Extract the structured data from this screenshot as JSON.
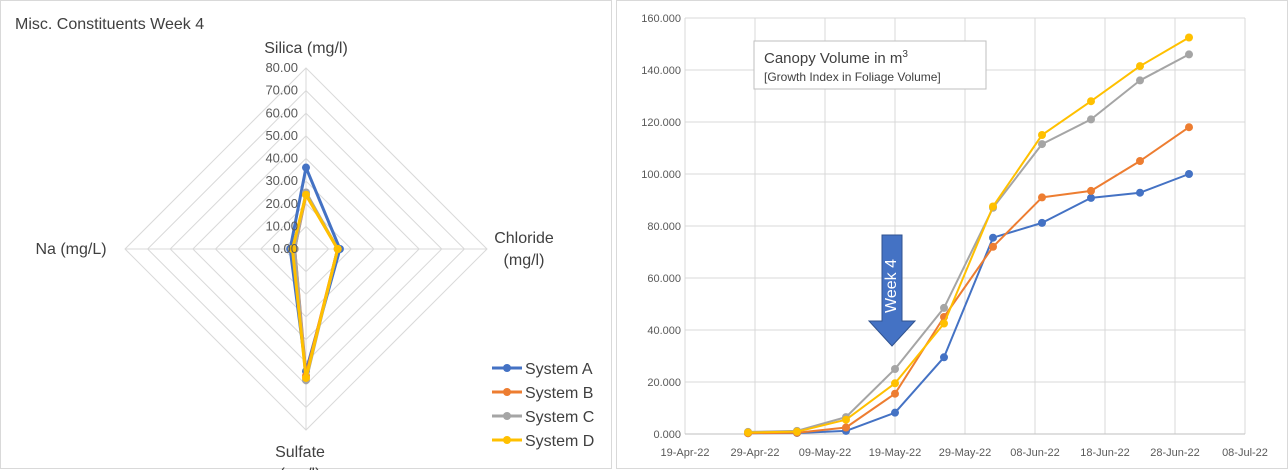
{
  "chart_data": [
    {
      "type": "radar",
      "title": "Misc. Constituents Week 4",
      "axes": [
        "Silica (mg/l)",
        "Chloride (mg/l)",
        "Sulfate (mg/l)",
        "Na (mg/L)"
      ],
      "axis_label_lines": [
        [
          "Silica (mg/l)"
        ],
        [
          "Chloride",
          "(mg/l)"
        ],
        [
          "Sulfate",
          "(mg/l)"
        ],
        [
          "Na (mg/L)"
        ]
      ],
      "rmax": 80,
      "ticks": [
        "80.00",
        "70.00",
        "60.00",
        "50.00",
        "40.00",
        "30.00",
        "20.00",
        "10.00",
        "0.00"
      ],
      "tick_values": [
        80,
        70,
        60,
        50,
        40,
        30,
        20,
        10,
        0
      ],
      "series": [
        {
          "name": "System A",
          "color": "#4472C4",
          "values": [
            36,
            15,
            54,
            7
          ]
        },
        {
          "name": "System B",
          "color": "#ED7D31",
          "values": [
            24,
            14,
            56,
            5
          ]
        },
        {
          "name": "System C",
          "color": "#A5A5A5",
          "values": [
            25,
            14,
            58,
            5
          ]
        },
        {
          "name": "System D",
          "color": "#FFC000",
          "values": [
            24,
            14,
            57,
            6
          ]
        }
      ],
      "legend_position": "bottom-right"
    },
    {
      "type": "line",
      "title": "Canopy Volume in m",
      "title_superscript": "3",
      "subtitle": "[Growth Index in Foliage Volume]",
      "x_ticks": [
        "19-Apr-22",
        "29-Apr-22",
        "09-May-22",
        "19-May-22",
        "29-May-22",
        "08-Jun-22",
        "18-Jun-22",
        "28-Jun-22",
        "08-Jul-22"
      ],
      "x_tick_dates": [
        "2022-04-19",
        "2022-04-29",
        "2022-05-09",
        "2022-05-19",
        "2022-05-29",
        "2022-06-08",
        "2022-06-18",
        "2022-06-28",
        "2022-07-08"
      ],
      "x_dates": [
        "2022-04-28",
        "2022-05-05",
        "2022-05-12",
        "2022-05-19",
        "2022-05-26",
        "2022-06-02",
        "2022-06-09",
        "2022-06-16",
        "2022-06-23",
        "2022-06-30"
      ],
      "y_ticks": [
        "0.000",
        "20.000",
        "40.000",
        "60.000",
        "80.000",
        "100.000",
        "120.000",
        "140.000",
        "160.000"
      ],
      "ylim": [
        0,
        160
      ],
      "grid": true,
      "series": [
        {
          "name": "System A",
          "color": "#4472C4",
          "values": [
            0.3,
            0.4,
            1.2,
            8.2,
            29.5,
            75.5,
            81.2,
            90.8,
            92.8,
            100.0
          ]
        },
        {
          "name": "System B",
          "color": "#ED7D31",
          "values": [
            0.3,
            0.5,
            2.5,
            15.5,
            45.0,
            72.0,
            91.0,
            93.5,
            105.0,
            118.0
          ]
        },
        {
          "name": "System C",
          "color": "#A5A5A5",
          "values": [
            0.8,
            1.2,
            6.5,
            25.0,
            48.5,
            87.0,
            111.5,
            121.0,
            136.0,
            146.0
          ]
        },
        {
          "name": "System D",
          "color": "#FFC000",
          "values": [
            0.6,
            0.9,
            5.5,
            19.5,
            42.5,
            87.5,
            115.0,
            128.0,
            141.5,
            152.5
          ]
        }
      ],
      "annotation": {
        "text": "Week 4",
        "color": "#4472C4",
        "x_date": "2022-05-19"
      }
    }
  ]
}
